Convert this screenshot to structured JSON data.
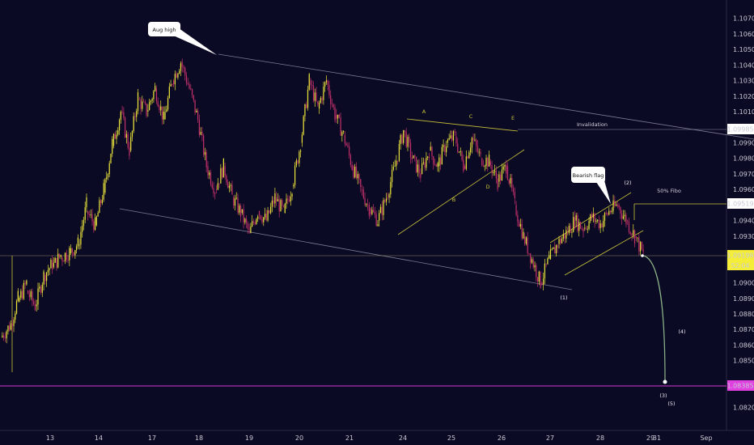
{
  "chart_data": {
    "type": "candlestick",
    "y_ticks": [
      "1.10700",
      "1.10600",
      "1.10500",
      "1.10400",
      "1.10300",
      "1.10200",
      "1.10100",
      "1.09900",
      "1.09800",
      "1.09700",
      "1.09600",
      "1.09400",
      "1.09300",
      "1.09100",
      "1.09000",
      "1.08900",
      "1.08800",
      "1.08700",
      "1.08600",
      "1.08500",
      "1.08200"
    ],
    "x_ticks": [
      "13",
      "14",
      "17",
      "18",
      "19",
      "20",
      "21",
      "24",
      "25",
      "26",
      "27",
      "28",
      "29",
      "30",
      "31",
      "Sep"
    ],
    "ylim": [
      1.0815,
      1.1075
    ],
    "price_badges": {
      "invalidation": "1.09985",
      "fibo": "1.09519",
      "current": "1.09198",
      "countdown": "52:04",
      "target": "1.08385"
    },
    "annotations": {
      "aug_high": "Aug high",
      "bearish_flag": "Bearish flag",
      "invalidation": "Invalidation",
      "fibo": "50% Fibo",
      "A": "A",
      "B": "B",
      "C": "C",
      "D": "D",
      "E": "E",
      "w1": "(1)",
      "w2": "(2)",
      "w3": "(3)",
      "w4": "(4)",
      "w5": "(5)"
    },
    "price_path": [
      [
        1.0865,
        1.0872
      ],
      [
        1.087,
        1.089
      ],
      [
        1.0888,
        1.09
      ],
      [
        1.0895,
        1.0885
      ],
      [
        1.0885,
        1.0905
      ],
      [
        1.0905,
        1.0912
      ],
      [
        1.091,
        1.0918
      ],
      [
        1.0916,
        1.092
      ],
      [
        1.0919,
        1.0925
      ],
      [
        1.0924,
        1.095
      ],
      [
        1.0946,
        1.0937
      ],
      [
        1.0937,
        1.096
      ],
      [
        1.0958,
        1.099
      ],
      [
        1.0988,
        1.101
      ],
      [
        1.101,
        1.0985
      ],
      [
        1.0985,
        1.102
      ],
      [
        1.1018,
        1.101
      ],
      [
        1.101,
        1.1025
      ],
      [
        1.1025,
        1.1005
      ],
      [
        1.1005,
        1.103
      ],
      [
        1.103,
        1.1042
      ],
      [
        1.1042,
        1.1025
      ],
      [
        1.1025,
        1.1005
      ],
      [
        1.1005,
        1.0975
      ],
      [
        1.0975,
        1.096
      ],
      [
        1.096,
        1.0975
      ],
      [
        1.0975,
        1.0955
      ],
      [
        1.0955,
        1.0945
      ],
      [
        1.0945,
        1.0932
      ],
      [
        1.0932,
        1.0946
      ],
      [
        1.0946,
        1.094
      ],
      [
        1.094,
        1.0955
      ],
      [
        1.0955,
        1.0945
      ],
      [
        1.0945,
        1.0962
      ],
      [
        1.0962,
        1.099
      ],
      [
        1.099,
        1.103
      ],
      [
        1.103,
        1.1012
      ],
      [
        1.1012,
        1.103
      ],
      [
        1.103,
        1.1008
      ],
      [
        1.1008,
        1.0995
      ],
      [
        1.0995,
        1.0975
      ],
      [
        1.0975,
        1.096
      ],
      [
        1.096,
        1.0948
      ],
      [
        1.0948,
        1.094
      ],
      [
        1.094,
        1.0955
      ],
      [
        1.0955,
        1.0975
      ],
      [
        1.0975,
        1.0998
      ],
      [
        1.0998,
        1.098
      ],
      [
        1.098,
        1.097
      ],
      [
        1.097,
        1.0985
      ],
      [
        1.0985,
        1.0975
      ],
      [
        1.0975,
        1.099
      ],
      [
        1.099,
        1.0994
      ],
      [
        1.0994,
        1.0975
      ],
      [
        1.0975,
        1.0993
      ],
      [
        1.0993,
        1.098
      ],
      [
        1.098,
        1.0978
      ],
      [
        1.0978,
        1.0965
      ],
      [
        1.0965,
        1.0975
      ],
      [
        1.0975,
        1.095
      ],
      [
        1.095,
        1.093
      ],
      [
        1.093,
        1.0915
      ],
      [
        1.0915,
        1.09
      ],
      [
        1.09,
        1.0915
      ],
      [
        1.0915,
        1.0925
      ],
      [
        1.0925,
        1.0932
      ],
      [
        1.0932,
        1.094
      ],
      [
        1.094,
        1.0935
      ],
      [
        1.0935,
        1.0942
      ],
      [
        1.0942,
        1.0938
      ],
      [
        1.0938,
        1.0946
      ],
      [
        1.0946,
        1.095
      ],
      [
        1.095,
        1.094
      ],
      [
        1.094,
        1.093
      ],
      [
        1.093,
        1.0918
      ]
    ],
    "projection": [
      1.0919,
      1.0838
    ]
  }
}
